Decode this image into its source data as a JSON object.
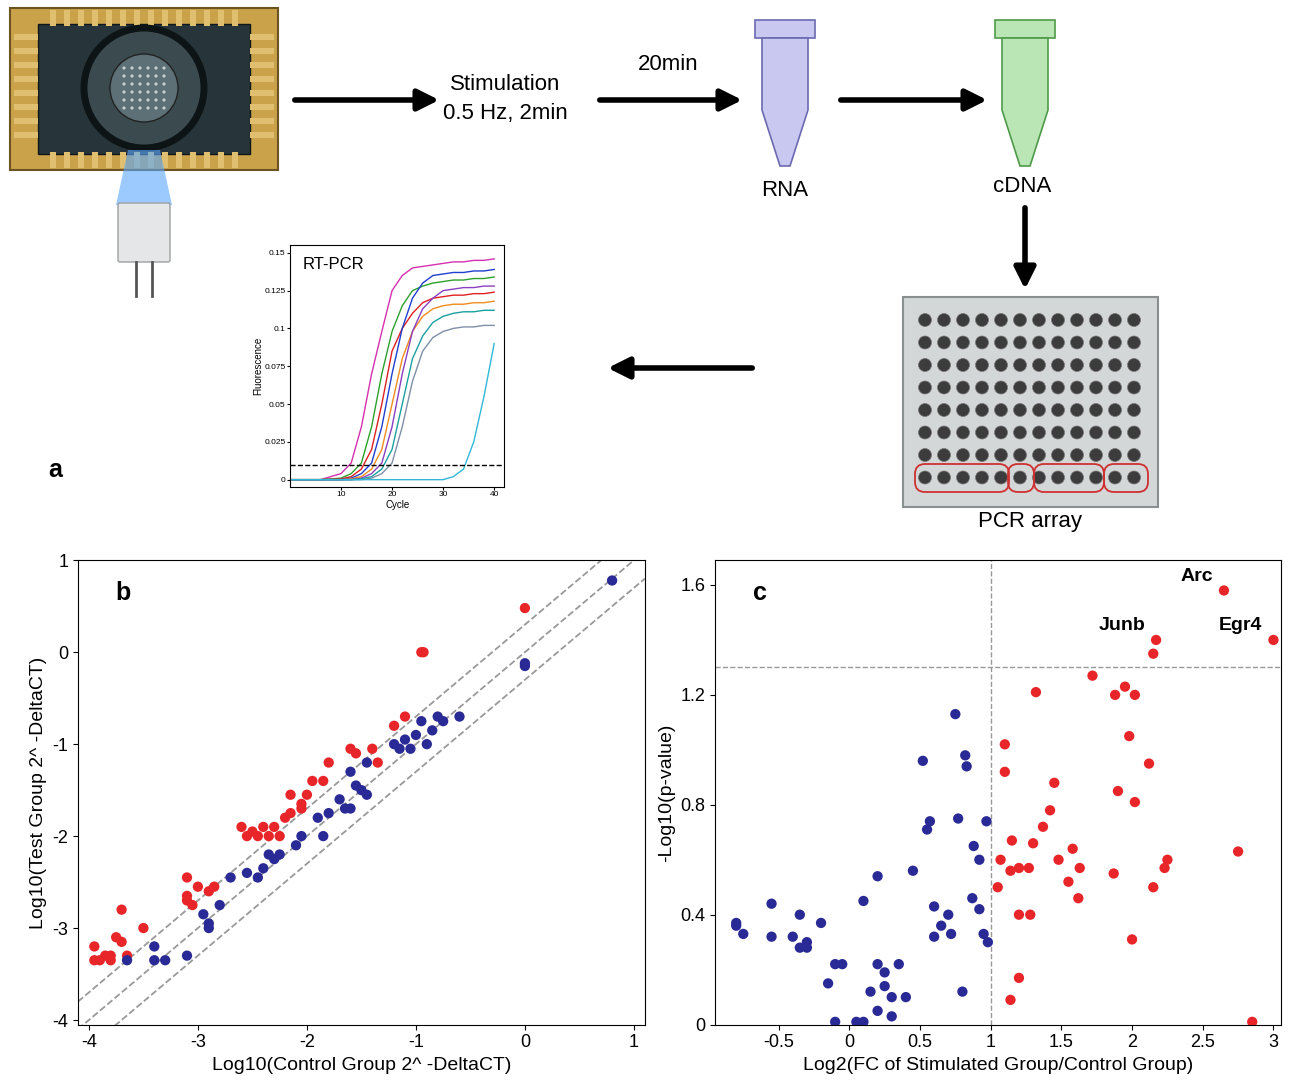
{
  "diagram": {
    "panel_label": "a",
    "stimulation": [
      "Stimulation",
      "0.5 Hz, 2min"
    ],
    "delay": "20min",
    "rna": "RNA",
    "cdna": "cDNA",
    "pcr_array": "PCR array"
  },
  "chart_data": [
    {
      "type": "line",
      "title": "RT-PCR",
      "x_label": "Cycle",
      "y_label": "Fluorescence",
      "x": [
        0,
        6,
        10,
        12,
        14,
        16,
        18,
        20,
        22,
        24,
        26,
        28,
        30,
        32,
        34,
        36,
        38,
        40
      ],
      "series": [
        {
          "color": "#d62fb0",
          "values": [
            0,
            0,
            0.004,
            0.011,
            0.035,
            0.07,
            0.098,
            0.125,
            0.135,
            0.14,
            0.141,
            0.142,
            0.143,
            0.144,
            0.144,
            0.145,
            0.145,
            0.146
          ]
        },
        {
          "color": "#2ca02c",
          "values": [
            0,
            0,
            0.001,
            0.004,
            0.011,
            0.035,
            0.07,
            0.098,
            0.115,
            0.125,
            0.128,
            0.13,
            0.131,
            0.132,
            0.132,
            0.133,
            0.133,
            0.134
          ]
        },
        {
          "color": "#e02020",
          "values": [
            0,
            0,
            0.0005,
            0.002,
            0.007,
            0.02,
            0.05,
            0.085,
            0.1,
            0.11,
            0.117,
            0.12,
            0.121,
            0.122,
            0.122,
            0.123,
            0.123,
            0.124
          ]
        },
        {
          "color": "#1f3fd0",
          "values": [
            0,
            0,
            0,
            0.001,
            0.004,
            0.011,
            0.035,
            0.07,
            0.1,
            0.12,
            0.13,
            0.135,
            0.136,
            0.137,
            0.137,
            0.138,
            0.138,
            0.139
          ]
        },
        {
          "color": "#f08c1e",
          "values": [
            0,
            0,
            0,
            0.0005,
            0.002,
            0.007,
            0.02,
            0.05,
            0.08,
            0.098,
            0.108,
            0.113,
            0.115,
            0.116,
            0.116,
            0.117,
            0.117,
            0.118
          ]
        },
        {
          "color": "#8a3fc0",
          "values": [
            0,
            0,
            0,
            0,
            0.001,
            0.004,
            0.011,
            0.035,
            0.07,
            0.098,
            0.113,
            0.12,
            0.125,
            0.126,
            0.127,
            0.127,
            0.128,
            0.128
          ]
        },
        {
          "color": "#1aa0a0",
          "values": [
            0,
            0,
            0,
            0,
            0.0005,
            0.002,
            0.007,
            0.02,
            0.05,
            0.08,
            0.095,
            0.104,
            0.108,
            0.11,
            0.111,
            0.111,
            0.112,
            0.112
          ]
        },
        {
          "color": "#7f8fa8",
          "values": [
            0,
            0,
            0,
            0,
            0,
            0.001,
            0.004,
            0.011,
            0.035,
            0.065,
            0.085,
            0.094,
            0.098,
            0.1,
            0.101,
            0.101,
            0.102,
            0.102
          ]
        },
        {
          "color": "#30b8d8",
          "values": [
            0,
            0,
            0,
            0,
            0,
            0,
            0,
            0,
            0,
            0,
            0,
            0,
            0,
            0.002,
            0.007,
            0.025,
            0.055,
            0.09
          ]
        }
      ],
      "threshold": 0.01,
      "xlim": [
        0,
        42
      ],
      "ylim": [
        -0.005,
        0.155
      ],
      "xticks": [
        10,
        20,
        30,
        40
      ],
      "yticks": [
        0,
        0.025,
        0.05,
        0.075,
        0.1,
        0.125,
        0.15
      ]
    },
    {
      "type": "scatter",
      "panel_label": "b",
      "x_label": "Log10(Control Group 2^ -DeltaCT)",
      "y_label": "Log10(Test Group 2^ -DeltaCT)",
      "series": [
        {
          "color": "#e8262a",
          "x": [
            -3.95,
            -3.95,
            -3.9,
            -3.85,
            -3.8,
            -3.8,
            -3.75,
            -3.7,
            -3.7,
            -3.65,
            -3.5,
            -3.1,
            -3.1,
            -3.1,
            -3.05,
            -3.0,
            -2.9,
            -2.85,
            -2.6,
            -2.55,
            -2.5,
            -2.45,
            -2.4,
            -2.35,
            -2.3,
            -2.25,
            -2.2,
            -2.15,
            -2.15,
            -2.05,
            -2.05,
            -2.0,
            -1.95,
            -1.85,
            -1.8,
            -1.6,
            -1.55,
            -1.4,
            -1.35,
            -1.2,
            -1.1,
            -0.95,
            -0.93,
            0.0
          ],
          "values": [
            -3.2,
            -3.35,
            -3.35,
            -3.3,
            -3.35,
            -3.3,
            -3.1,
            -2.8,
            -3.15,
            -3.3,
            -3.0,
            -2.45,
            -2.65,
            -2.7,
            -2.75,
            -2.55,
            -2.6,
            -2.55,
            -1.9,
            -2.0,
            -1.95,
            -2.0,
            -1.9,
            -2.0,
            -1.9,
            -2.0,
            -1.8,
            -1.75,
            -1.55,
            -1.65,
            -1.7,
            -1.55,
            -1.4,
            -1.4,
            -1.2,
            -1.05,
            -1.1,
            -1.05,
            -1.2,
            -0.8,
            -0.7,
            0.0,
            0.0,
            0.48
          ]
        },
        {
          "color": "#2a2a96",
          "x": [
            -3.65,
            -3.4,
            -3.4,
            -3.3,
            -3.1,
            -2.95,
            -2.9,
            -2.9,
            -2.8,
            -2.7,
            -2.55,
            -2.45,
            -2.4,
            -2.35,
            -2.3,
            -2.25,
            -2.1,
            -2.05,
            -1.9,
            -1.85,
            -1.8,
            -1.7,
            -1.65,
            -1.6,
            -1.6,
            -1.55,
            -1.5,
            -1.45,
            -1.45,
            -1.2,
            -1.15,
            -1.1,
            -1.05,
            -1.0,
            -0.95,
            -0.9,
            -0.85,
            -0.8,
            -0.75,
            -0.6,
            0.0,
            0.0,
            0.8
          ],
          "values": [
            -3.35,
            -3.2,
            -3.35,
            -3.35,
            -3.3,
            -2.85,
            -2.95,
            -3.0,
            -2.75,
            -2.45,
            -2.4,
            -2.45,
            -2.35,
            -2.2,
            -2.25,
            -2.2,
            -2.1,
            -2.0,
            -1.8,
            -2.0,
            -1.75,
            -1.6,
            -1.7,
            -1.3,
            -1.7,
            -1.45,
            -1.5,
            -1.55,
            -1.2,
            -1.0,
            -1.05,
            -0.95,
            -1.05,
            -0.9,
            -0.75,
            -1.0,
            -0.85,
            -0.7,
            -0.75,
            -0.7,
            -0.15,
            -0.12,
            0.78
          ]
        }
      ],
      "diagonal_offsets": [
        -0.3,
        0,
        0.3
      ],
      "xlim": [
        -4.1,
        1.1
      ],
      "ylim": [
        -4.05,
        1
      ],
      "xticks": [
        -4,
        -3,
        -2,
        -1,
        0,
        1
      ],
      "yticks": [
        -4,
        -3,
        -2,
        -1,
        0,
        1
      ]
    },
    {
      "type": "scatter",
      "panel_label": "c",
      "x_label": "Log2(FC of Stimulated Group/Control Group)",
      "y_label": "-Log10(p-value)",
      "series": [
        {
          "color": "#e8262a",
          "x": [
            2.65,
            2.17,
            2.15,
            3.0,
            1.72,
            1.95,
            1.88,
            2.02,
            1.32,
            1.98,
            1.1,
            1.1,
            2.12,
            1.45,
            1.9,
            2.02,
            1.42,
            1.37,
            1.07,
            1.15,
            1.3,
            1.58,
            1.48,
            1.63,
            1.2,
            1.27,
            1.14,
            2.75,
            2.25,
            2.23,
            1.87,
            1.55,
            1.05,
            1.62,
            2.15,
            1.2,
            1.28,
            2.0,
            1.2,
            1.14,
            2.85
          ],
          "values": [
            1.58,
            1.4,
            1.35,
            1.4,
            1.27,
            1.23,
            1.2,
            1.2,
            1.21,
            1.05,
            1.02,
            0.92,
            0.95,
            0.88,
            0.85,
            0.81,
            0.78,
            0.72,
            0.6,
            0.67,
            0.66,
            0.64,
            0.6,
            0.57,
            0.57,
            0.57,
            0.56,
            0.63,
            0.6,
            0.57,
            0.55,
            0.52,
            0.5,
            0.46,
            0.5,
            0.4,
            0.4,
            0.31,
            0.17,
            0.09,
            0.01
          ]
        },
        {
          "color": "#2a2a96",
          "x": [
            -0.8,
            -0.8,
            -0.75,
            -0.55,
            -0.55,
            -0.4,
            -0.35,
            -0.35,
            -0.3,
            -0.3,
            -0.2,
            -0.1,
            -0.05,
            -0.15,
            -0.1,
            0.05,
            0.1,
            0.1,
            0.2,
            0.2,
            0.15,
            0.25,
            0.2,
            0.25,
            0.3,
            0.35,
            0.3,
            0.45,
            0.4,
            0.52,
            0.55,
            0.57,
            0.6,
            0.6,
            0.65,
            0.7,
            0.72,
            0.75,
            0.77,
            0.82,
            0.83,
            0.8,
            0.88,
            0.87,
            0.92,
            0.97,
            0.95,
            0.98,
            0.92
          ],
          "values": [
            0.36,
            0.37,
            0.33,
            0.44,
            0.32,
            0.32,
            0.4,
            0.28,
            0.3,
            0.28,
            0.37,
            0.22,
            0.22,
            0.15,
            0.01,
            0.01,
            0.01,
            0.45,
            0.54,
            0.22,
            0.12,
            0.19,
            0.05,
            0.14,
            0.1,
            0.22,
            0.03,
            0.56,
            0.1,
            0.96,
            0.71,
            0.74,
            0.43,
            0.32,
            0.36,
            0.4,
            0.33,
            1.13,
            0.75,
            0.98,
            0.94,
            0.12,
            0.65,
            0.46,
            0.6,
            0.74,
            0.33,
            0.3,
            0.42
          ]
        }
      ],
      "x_threshold": 1,
      "y_threshold": 1.3,
      "annotations": [
        {
          "text": "Arc",
          "x": 2.65,
          "y": 1.58
        },
        {
          "text": "Junb",
          "x": 2.17,
          "y": 1.4
        },
        {
          "text": "Egr4",
          "x": 3.0,
          "y": 1.4
        }
      ],
      "xlim": [
        -0.95,
        3.05
      ],
      "ylim": [
        0,
        1.69
      ],
      "xticks": [
        -0.5,
        0,
        0.5,
        1,
        1.5,
        2,
        2.5,
        3
      ],
      "yticks": [
        0,
        0.4,
        0.8,
        1.2,
        1.6
      ]
    }
  ]
}
